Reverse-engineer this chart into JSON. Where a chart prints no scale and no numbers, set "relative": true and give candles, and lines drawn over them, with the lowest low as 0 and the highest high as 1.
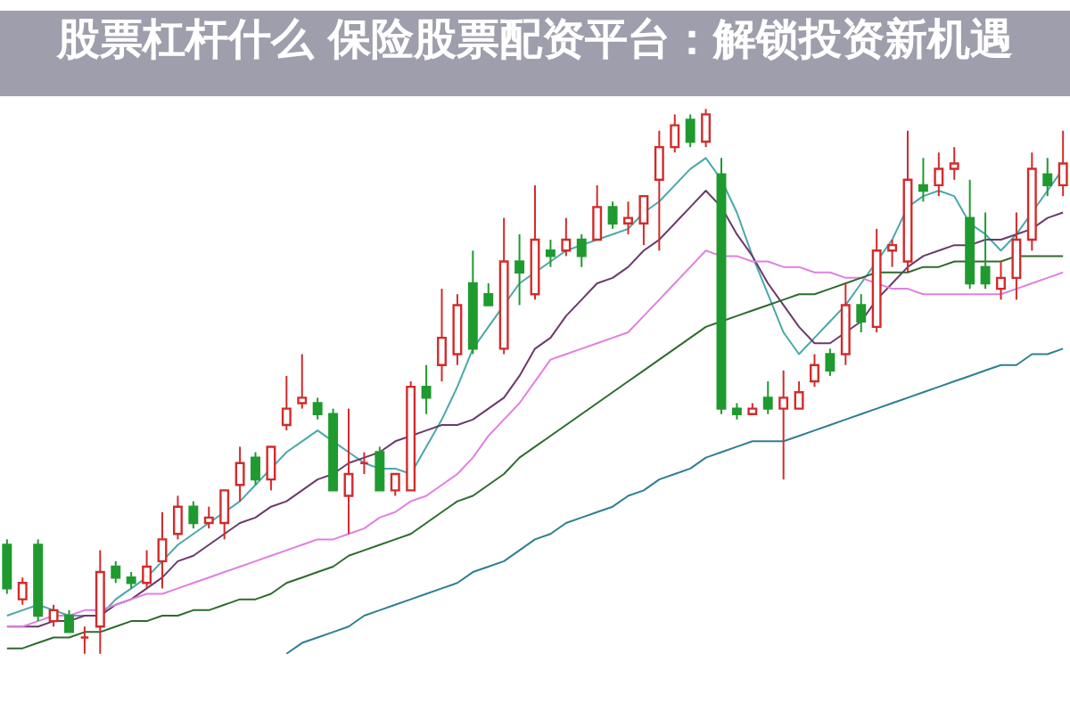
{
  "chart_data": {
    "type": "candlestick",
    "title": "股票杠杆什么 保险股票配资平台：解锁投资新机遇",
    "relative": true,
    "categories": [
      null,
      null,
      null,
      null,
      null,
      null,
      null,
      null,
      null,
      null,
      null,
      null,
      null,
      null,
      null,
      null,
      null,
      null,
      null,
      null,
      null,
      null,
      null,
      null,
      null,
      null,
      null,
      null,
      null,
      null,
      null,
      null,
      null,
      null,
      null,
      null,
      null,
      null,
      null,
      null,
      null,
      null,
      null,
      null,
      null,
      null,
      null,
      null,
      null,
      null,
      null,
      null,
      null,
      null,
      null,
      null,
      null,
      null,
      null,
      null,
      null,
      null,
      null,
      null,
      null,
      null,
      null,
      null,
      null
    ],
    "ohlc": [
      [
        0.2,
        0.21,
        0.11,
        0.12
      ],
      [
        0.1,
        0.14,
        0.09,
        0.13
      ],
      [
        0.2,
        0.21,
        0.06,
        0.07
      ],
      [
        0.06,
        0.09,
        0.05,
        0.08
      ],
      [
        0.07,
        0.08,
        0.04,
        0.04
      ],
      [
        0.03,
        0.05,
        0,
        0.03
      ],
      [
        0.05,
        0.19,
        0,
        0.15
      ],
      [
        0.16,
        0.17,
        0.13,
        0.14
      ],
      [
        0.14,
        0.15,
        0.12,
        0.13
      ],
      [
        0.13,
        0.19,
        0.12,
        0.16
      ],
      [
        0.17,
        0.26,
        0.12,
        0.21
      ],
      [
        0.22,
        0.29,
        0.21,
        0.27
      ],
      [
        0.27,
        0.28,
        0.23,
        0.24
      ],
      [
        0.24,
        0.27,
        0.23,
        0.25
      ],
      [
        0.24,
        0.3,
        0.21,
        0.3
      ],
      [
        0.31,
        0.38,
        0.28,
        0.35
      ],
      [
        0.36,
        0.37,
        0.31,
        0.32
      ],
      [
        0.32,
        0.38,
        0.3,
        0.38
      ],
      [
        0.42,
        0.51,
        0.41,
        0.45
      ],
      [
        0.46,
        0.55,
        0.45,
        0.47
      ],
      [
        0.46,
        0.47,
        0.43,
        0.44
      ],
      [
        0.44,
        0.45,
        0.3,
        0.3
      ],
      [
        0.29,
        0.45,
        0.22,
        0.33
      ],
      [
        0.35,
        0.37,
        0.33,
        0.35
      ],
      [
        0.37,
        0.38,
        0.3,
        0.3
      ],
      [
        0.3,
        0.33,
        0.29,
        0.33
      ],
      [
        0.3,
        0.5,
        0.3,
        0.49
      ],
      [
        0.49,
        0.53,
        0.44,
        0.47
      ],
      [
        0.53,
        0.67,
        0.5,
        0.58
      ],
      [
        0.55,
        0.66,
        0.53,
        0.64
      ],
      [
        0.68,
        0.74,
        0.55,
        0.56
      ],
      [
        0.66,
        0.68,
        0.64,
        0.64
      ],
      [
        0.56,
        0.8,
        0.55,
        0.72
      ],
      [
        0.72,
        0.77,
        0.64,
        0.7
      ],
      [
        0.66,
        0.86,
        0.65,
        0.76
      ],
      [
        0.74,
        0.76,
        0.71,
        0.73
      ],
      [
        0.74,
        0.8,
        0.73,
        0.76
      ],
      [
        0.76,
        0.77,
        0.71,
        0.73
      ],
      [
        0.76,
        0.86,
        0.76,
        0.82
      ],
      [
        0.82,
        0.83,
        0.78,
        0.79
      ],
      [
        0.79,
        0.83,
        0.77,
        0.8
      ],
      [
        0.79,
        0.84,
        0.75,
        0.84
      ],
      [
        0.87,
        0.96,
        0.74,
        0.93
      ],
      [
        0.93,
        0.99,
        0.92,
        0.97
      ],
      [
        0.98,
        0.99,
        0.93,
        0.94
      ],
      [
        0.94,
        1,
        0.93,
        0.99
      ],
      [
        0.88,
        0.91,
        0.44,
        0.45
      ],
      [
        0.45,
        0.46,
        0.43,
        0.44
      ],
      [
        0.44,
        0.46,
        0.44,
        0.45
      ],
      [
        0.47,
        0.5,
        0.44,
        0.45
      ],
      [
        0.45,
        0.52,
        0.32,
        0.47
      ],
      [
        0.45,
        0.5,
        0.45,
        0.48
      ],
      [
        0.5,
        0.55,
        0.49,
        0.53
      ],
      [
        0.55,
        0.56,
        0.51,
        0.52
      ],
      [
        0.55,
        0.68,
        0.53,
        0.64
      ],
      [
        0.64,
        0.66,
        0.59,
        0.61
      ],
      [
        0.6,
        0.78,
        0.59,
        0.74
      ],
      [
        0.74,
        0.76,
        0.71,
        0.75
      ],
      [
        0.72,
        0.96,
        0.7,
        0.87
      ],
      [
        0.86,
        0.91,
        0.83,
        0.85
      ],
      [
        0.86,
        0.92,
        0.84,
        0.89
      ],
      [
        0.89,
        0.93,
        0.87,
        0.9
      ],
      [
        0.8,
        0.87,
        0.67,
        0.68
      ],
      [
        0.71,
        0.81,
        0.67,
        0.68
      ],
      [
        0.67,
        0.72,
        0.65,
        0.69
      ],
      [
        0.69,
        0.81,
        0.65,
        0.76
      ],
      [
        0.76,
        0.92,
        0.74,
        0.89
      ],
      [
        0.88,
        0.91,
        0.84,
        0.86
      ],
      [
        0.86,
        0.96,
        0.84,
        0.9
      ]
    ],
    "series": [
      {
        "type": "line",
        "color": "#4aa8a8",
        "values": [
          0.07,
          0.08,
          0.09,
          0.08,
          0.07,
          0.07,
          0.07,
          0.1,
          0.12,
          0.14,
          0.17,
          0.2,
          0.22,
          0.24,
          0.26,
          0.28,
          0.31,
          0.34,
          0.37,
          0.39,
          0.41,
          0.39,
          0.37,
          0.35,
          0.34,
          0.34,
          0.33,
          0.38,
          0.43,
          0.49,
          0.56,
          0.6,
          0.64,
          0.68,
          0.7,
          0.72,
          0.74,
          0.75,
          0.76,
          0.77,
          0.78,
          0.81,
          0.83,
          0.86,
          0.89,
          0.91,
          0.87,
          0.81,
          0.73,
          0.66,
          0.59,
          0.55,
          0.58,
          0.61,
          0.64,
          0.68,
          0.72,
          0.76,
          0.82,
          0.84,
          0.85,
          0.84,
          0.79,
          0.77,
          0.74,
          0.77,
          0.81,
          0.85,
          0.89
        ]
      },
      {
        "type": "line",
        "color": "#6b3a6b",
        "values": [
          0.05,
          0.05,
          0.05,
          0.06,
          0.06,
          0.07,
          0.07,
          0.09,
          0.1,
          0.12,
          0.14,
          0.17,
          0.18,
          0.2,
          0.22,
          0.24,
          0.25,
          0.27,
          0.28,
          0.3,
          0.32,
          0.33,
          0.35,
          0.36,
          0.37,
          0.39,
          0.4,
          0.41,
          0.42,
          0.42,
          0.43,
          0.45,
          0.47,
          0.51,
          0.56,
          0.58,
          0.62,
          0.65,
          0.68,
          0.69,
          0.71,
          0.74,
          0.76,
          0.79,
          0.82,
          0.85,
          0.82,
          0.77,
          0.73,
          0.68,
          0.64,
          0.6,
          0.57,
          0.57,
          0.59,
          0.61,
          0.65,
          0.68,
          0.71,
          0.73,
          0.74,
          0.75,
          0.75,
          0.76,
          0.76,
          0.77,
          0.78,
          0.8,
          0.81
        ]
      },
      {
        "type": "line",
        "color": "#e080e0",
        "values": [
          0.05,
          0.05,
          0.06,
          0.07,
          0.07,
          0.08,
          0.08,
          0.09,
          0.1,
          0.11,
          0.11,
          0.12,
          0.13,
          0.14,
          0.15,
          0.16,
          0.17,
          0.18,
          0.19,
          0.2,
          0.21,
          0.21,
          0.22,
          0.23,
          0.25,
          0.26,
          0.28,
          0.29,
          0.31,
          0.33,
          0.36,
          0.4,
          0.43,
          0.46,
          0.5,
          0.54,
          0.55,
          0.56,
          0.57,
          0.58,
          0.59,
          0.62,
          0.65,
          0.68,
          0.71,
          0.74,
          0.73,
          0.73,
          0.72,
          0.72,
          0.71,
          0.71,
          0.7,
          0.7,
          0.69,
          0.69,
          0.68,
          0.67,
          0.67,
          0.66,
          0.66,
          0.66,
          0.66,
          0.66,
          0.66,
          0.67,
          0.68,
          0.69,
          0.7
        ]
      },
      {
        "type": "line",
        "color": "#2e6b2e",
        "values": [
          0.01,
          0.01,
          0.02,
          0.03,
          0.03,
          0.04,
          0.04,
          0.05,
          0.06,
          0.06,
          0.07,
          0.07,
          0.08,
          0.08,
          0.09,
          0.1,
          0.1,
          0.11,
          0.13,
          0.14,
          0.15,
          0.16,
          0.18,
          0.19,
          0.2,
          0.21,
          0.22,
          0.24,
          0.26,
          0.28,
          0.29,
          0.31,
          0.33,
          0.36,
          0.38,
          0.4,
          0.42,
          0.44,
          0.46,
          0.48,
          0.5,
          0.52,
          0.54,
          0.56,
          0.58,
          0.6,
          0.61,
          0.62,
          0.63,
          0.64,
          0.65,
          0.66,
          0.66,
          0.67,
          0.68,
          0.69,
          0.7,
          0.7,
          0.7,
          0.71,
          0.71,
          0.72,
          0.72,
          0.72,
          0.72,
          0.73,
          0.73,
          0.73,
          0.73
        ]
      },
      {
        "type": "line",
        "color": "#2f7f8f",
        "values": [
          null,
          null,
          null,
          null,
          null,
          null,
          null,
          null,
          null,
          null,
          null,
          null,
          null,
          null,
          null,
          null,
          null,
          null,
          0.0,
          0.02,
          0.03,
          0.04,
          0.05,
          0.07,
          0.08,
          0.09,
          0.1,
          0.11,
          0.12,
          0.13,
          0.15,
          0.16,
          0.17,
          0.19,
          0.21,
          0.22,
          0.24,
          0.25,
          0.26,
          0.27,
          0.29,
          0.3,
          0.32,
          0.33,
          0.34,
          0.36,
          0.37,
          0.38,
          0.39,
          0.39,
          0.39,
          0.4,
          0.41,
          0.42,
          0.43,
          0.44,
          0.45,
          0.46,
          0.47,
          0.48,
          0.49,
          0.5,
          0.51,
          0.52,
          0.53,
          0.53,
          0.55,
          0.55,
          0.56
        ]
      }
    ]
  }
}
